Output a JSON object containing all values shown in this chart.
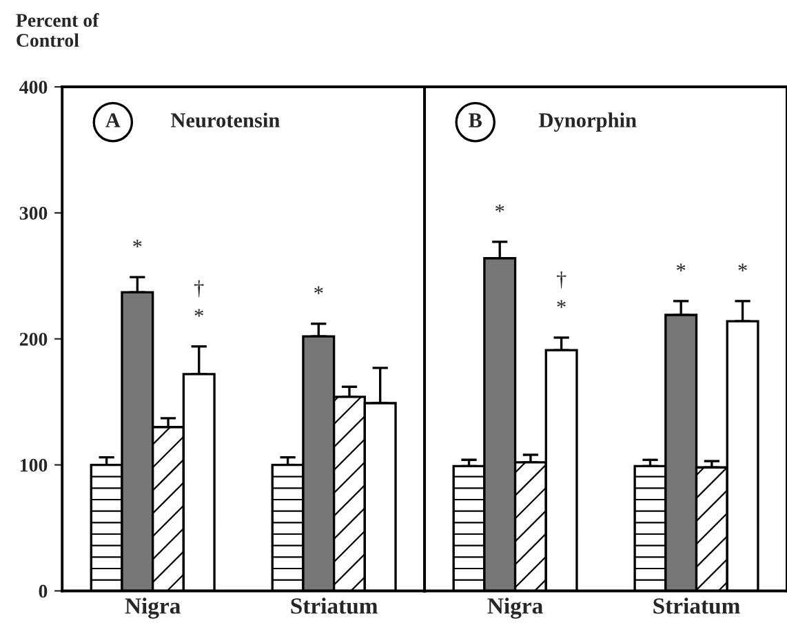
{
  "chart_data": [
    {
      "type": "bar",
      "title": "Neurotensin",
      "ylabel": "Percent of\nControl",
      "categories": [
        "Nigra",
        "Striatum"
      ],
      "series": [
        {
          "color": "#ffffff",
          "values": [
            100,
            100
          ],
          "errors": [
            6,
            6
          ]
        },
        {
          "color": "#777777",
          "values": [
            237,
            202
          ],
          "errors": [
            12,
            10
          ],
          "value_labels": [
            "*",
            "*"
          ]
        },
        {
          "color": "#ffffff",
          "values": [
            130,
            154
          ],
          "errors": [
            7,
            8
          ]
        },
        {
          "color": "#ffffff",
          "values": [
            172,
            149
          ],
          "errors": [
            22,
            28
          ],
          "value_labels": [
            "†\n*",
            null
          ]
        }
      ],
      "ylim": [
        0,
        400
      ],
      "yticks": [
        0,
        100,
        200,
        300,
        400
      ],
      "annotations": [
        "A"
      ]
    },
    {
      "type": "bar",
      "title": "Dynorphin",
      "categories": [
        "Nigra",
        "Striatum"
      ],
      "series": [
        {
          "color": "#ffffff",
          "values": [
            99,
            99
          ],
          "errors": [
            5,
            5
          ]
        },
        {
          "color": "#777777",
          "values": [
            264,
            219
          ],
          "errors": [
            13,
            11
          ],
          "value_labels": [
            "*",
            "*"
          ]
        },
        {
          "color": "#ffffff",
          "values": [
            102,
            98
          ],
          "errors": [
            6,
            5
          ]
        },
        {
          "color": "#ffffff",
          "values": [
            191,
            214
          ],
          "errors": [
            10,
            16
          ],
          "value_labels": [
            "†\n*",
            "*"
          ]
        }
      ],
      "ylim": [
        0,
        400
      ],
      "tick_labels": "x",
      "annotations": [
        "B"
      ]
    }
  ]
}
